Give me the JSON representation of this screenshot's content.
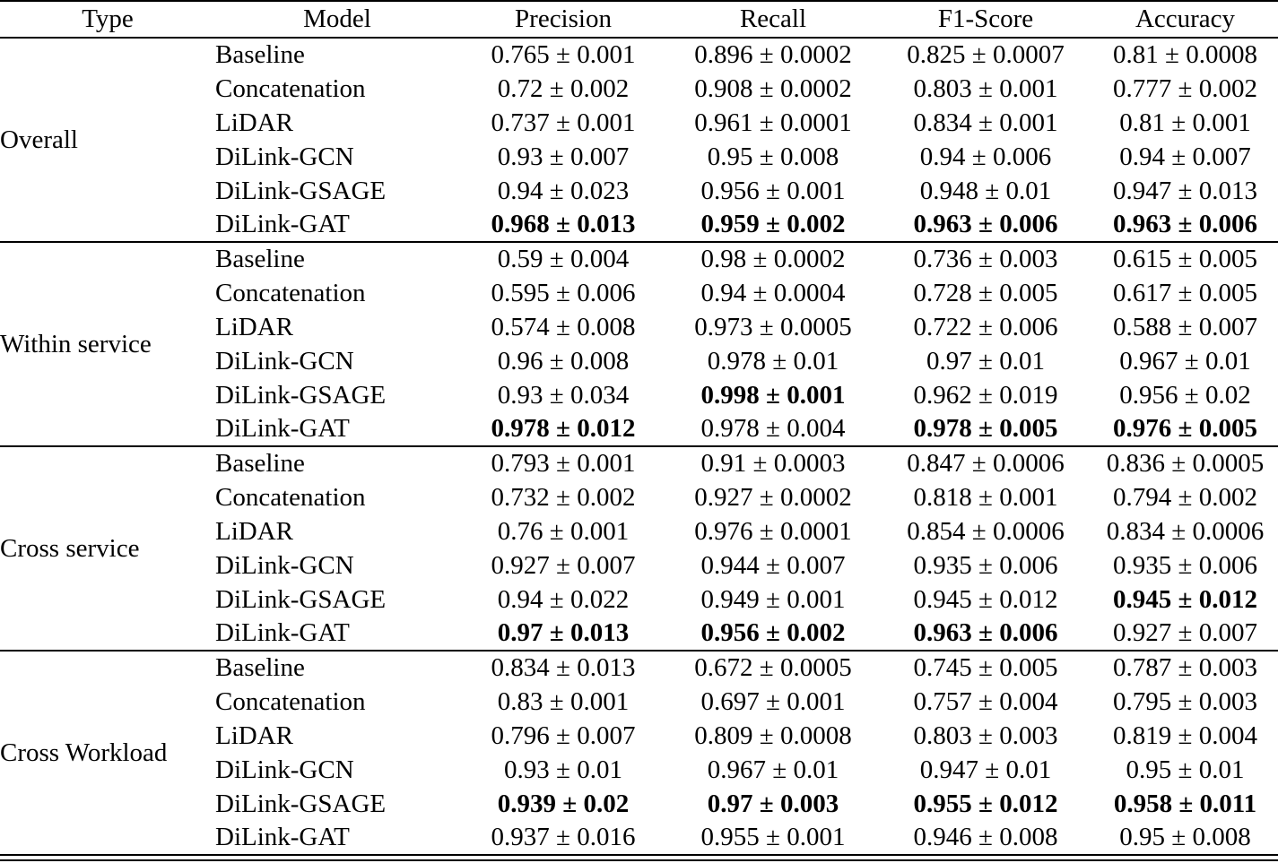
{
  "table": {
    "headers": [
      "Type",
      "Model",
      "Precision",
      "Recall",
      "F1-Score",
      "Accuracy"
    ],
    "groups": [
      {
        "type": "Overall",
        "rows": [
          {
            "model": "Baseline",
            "values": [
              "0.765 ± 0.001",
              "0.896 ± 0.0002",
              "0.825 ± 0.0007",
              "0.81 ± 0.0008"
            ],
            "bold": [
              false,
              false,
              false,
              false
            ]
          },
          {
            "model": "Concatenation",
            "values": [
              "0.72 ± 0.002",
              "0.908 ± 0.0002",
              "0.803 ± 0.001",
              "0.777 ± 0.002"
            ],
            "bold": [
              false,
              false,
              false,
              false
            ]
          },
          {
            "model": "LiDAR",
            "values": [
              "0.737 ± 0.001",
              "0.961 ± 0.0001",
              "0.834 ± 0.001",
              "0.81 ± 0.001"
            ],
            "bold": [
              false,
              false,
              false,
              false
            ]
          },
          {
            "model": "DiLink-GCN",
            "values": [
              "0.93 ± 0.007",
              "0.95 ± 0.008",
              "0.94 ± 0.006",
              "0.94 ± 0.007"
            ],
            "bold": [
              false,
              false,
              false,
              false
            ]
          },
          {
            "model": "DiLink-GSAGE",
            "values": [
              "0.94 ± 0.023",
              "0.956 ± 0.001",
              "0.948 ± 0.01",
              "0.947 ± 0.013"
            ],
            "bold": [
              false,
              false,
              false,
              false
            ]
          },
          {
            "model": "DiLink-GAT",
            "values": [
              "0.968 ± 0.013",
              "0.959 ± 0.002",
              "0.963 ± 0.006",
              "0.963 ± 0.006"
            ],
            "bold": [
              true,
              true,
              true,
              true
            ]
          }
        ]
      },
      {
        "type": "Within service",
        "rows": [
          {
            "model": "Baseline",
            "values": [
              "0.59 ± 0.004",
              "0.98 ± 0.0002",
              "0.736 ± 0.003",
              "0.615 ± 0.005"
            ],
            "bold": [
              false,
              false,
              false,
              false
            ]
          },
          {
            "model": "Concatenation",
            "values": [
              "0.595 ± 0.006",
              "0.94 ± 0.0004",
              "0.728 ± 0.005",
              "0.617 ± 0.005"
            ],
            "bold": [
              false,
              false,
              false,
              false
            ]
          },
          {
            "model": "LiDAR",
            "values": [
              "0.574 ± 0.008",
              "0.973 ± 0.0005",
              "0.722 ± 0.006",
              "0.588 ± 0.007"
            ],
            "bold": [
              false,
              false,
              false,
              false
            ]
          },
          {
            "model": "DiLink-GCN",
            "values": [
              "0.96 ± 0.008",
              "0.978 ± 0.01",
              "0.97 ± 0.01",
              "0.967 ± 0.01"
            ],
            "bold": [
              false,
              false,
              false,
              false
            ]
          },
          {
            "model": "DiLink-GSAGE",
            "values": [
              "0.93 ± 0.034",
              "0.998 ± 0.001",
              "0.962 ± 0.019",
              "0.956 ± 0.02"
            ],
            "bold": [
              false,
              true,
              false,
              false
            ]
          },
          {
            "model": "DiLink-GAT",
            "values": [
              "0.978 ± 0.012",
              "0.978 ± 0.004",
              "0.978 ± 0.005",
              "0.976 ± 0.005"
            ],
            "bold": [
              true,
              false,
              true,
              true
            ]
          }
        ]
      },
      {
        "type": "Cross service",
        "rows": [
          {
            "model": "Baseline",
            "values": [
              "0.793 ± 0.001",
              "0.91 ± 0.0003",
              "0.847 ± 0.0006",
              "0.836 ± 0.0005"
            ],
            "bold": [
              false,
              false,
              false,
              false
            ]
          },
          {
            "model": "Concatenation",
            "values": [
              "0.732 ± 0.002",
              "0.927 ± 0.0002",
              "0.818 ± 0.001",
              "0.794 ± 0.002"
            ],
            "bold": [
              false,
              false,
              false,
              false
            ]
          },
          {
            "model": "LiDAR",
            "values": [
              "0.76 ± 0.001",
              "0.976 ± 0.0001",
              "0.854 ± 0.0006",
              "0.834 ± 0.0006"
            ],
            "bold": [
              false,
              false,
              false,
              false
            ]
          },
          {
            "model": "DiLink-GCN",
            "values": [
              "0.927 ± 0.007",
              "0.944 ± 0.007",
              "0.935 ± 0.006",
              "0.935 ± 0.006"
            ],
            "bold": [
              false,
              false,
              false,
              false
            ]
          },
          {
            "model": "DiLink-GSAGE",
            "values": [
              "0.94 ± 0.022",
              "0.949 ± 0.001",
              "0.945 ± 0.012",
              "0.945 ± 0.012"
            ],
            "bold": [
              false,
              false,
              false,
              true
            ]
          },
          {
            "model": "DiLink-GAT",
            "values": [
              "0.97 ± 0.013",
              "0.956 ± 0.002",
              "0.963 ± 0.006",
              "0.927 ± 0.007"
            ],
            "bold": [
              true,
              true,
              true,
              false
            ]
          }
        ]
      },
      {
        "type": "Cross Workload",
        "rows": [
          {
            "model": "Baseline",
            "values": [
              "0.834 ± 0.013",
              "0.672 ± 0.0005",
              "0.745 ± 0.005",
              "0.787 ± 0.003"
            ],
            "bold": [
              false,
              false,
              false,
              false
            ]
          },
          {
            "model": "Concatenation",
            "values": [
              "0.83 ± 0.001",
              "0.697 ± 0.001",
              "0.757 ± 0.004",
              "0.795 ± 0.003"
            ],
            "bold": [
              false,
              false,
              false,
              false
            ]
          },
          {
            "model": "LiDAR",
            "values": [
              "0.796 ± 0.007",
              "0.809 ± 0.0008",
              "0.803 ± 0.003",
              "0.819 ± 0.004"
            ],
            "bold": [
              false,
              false,
              false,
              false
            ]
          },
          {
            "model": "DiLink-GCN",
            "values": [
              "0.93 ± 0.01",
              "0.967 ± 0.01",
              "0.947 ± 0.01",
              "0.95 ± 0.01"
            ],
            "bold": [
              false,
              false,
              false,
              false
            ]
          },
          {
            "model": "DiLink-GSAGE",
            "values": [
              "0.939 ± 0.02",
              "0.97 ± 0.003",
              "0.955 ± 0.012",
              "0.958 ± 0.011"
            ],
            "bold": [
              true,
              true,
              true,
              true
            ]
          },
          {
            "model": "DiLink-GAT",
            "values": [
              "0.937 ± 0.016",
              "0.955 ± 0.001",
              "0.946 ± 0.008",
              "0.95 ± 0.008"
            ],
            "bold": [
              false,
              false,
              false,
              false
            ]
          }
        ]
      }
    ]
  }
}
